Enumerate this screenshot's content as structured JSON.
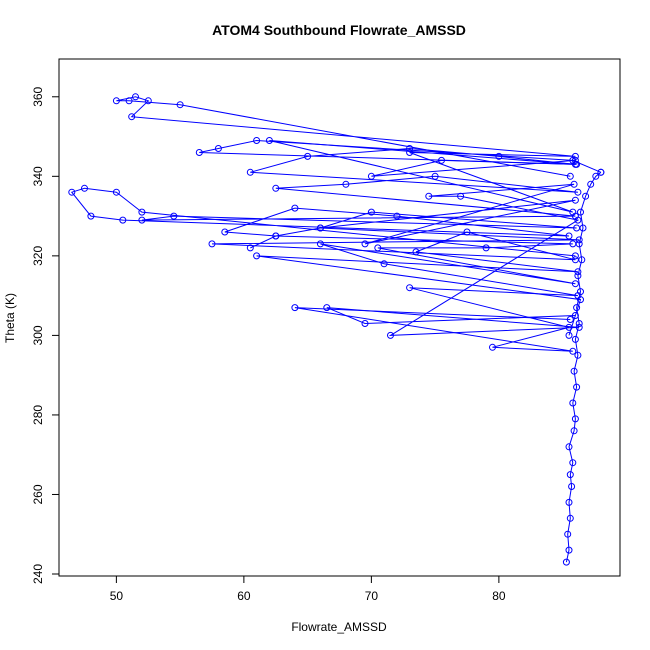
{
  "chart_data": {
    "type": "line",
    "title": "ATOM4 Southbound Flowrate_AMSSD",
    "xlabel": "Flowrate_AMSSD",
    "ylabel": "Theta (K)",
    "xlim": [
      45.5,
      89.5
    ],
    "ylim": [
      239.5,
      369.5
    ],
    "x_ticks": [
      50,
      60,
      70,
      80
    ],
    "y_ticks": [
      240,
      260,
      280,
      300,
      320,
      340,
      360
    ],
    "x_tick_labels": [
      "50",
      "60",
      "70",
      "80"
    ],
    "y_tick_labels": [
      "240",
      "260",
      "280",
      "300",
      "320",
      "340",
      "360"
    ],
    "grid": false,
    "legend": "none",
    "marker": "open-circle",
    "series_color": "#0000ff",
    "series": [
      {
        "x": [
          85.3,
          85.5,
          85.4,
          85.6,
          85.5,
          85.7,
          85.6,
          85.8,
          85.5,
          85.9,
          86.0,
          85.8,
          86.1,
          85.9,
          86.2,
          86.0,
          86.3,
          86.1,
          86.4,
          86.2,
          86.5,
          86.3,
          86.6,
          86.4,
          86.8,
          87.2,
          87.6,
          88.0
        ],
        "y": [
          243,
          246,
          250,
          254,
          258,
          262,
          265,
          268,
          272,
          276,
          279,
          283,
          287,
          291,
          295,
          299,
          303,
          307,
          311,
          315,
          319,
          323,
          327,
          331,
          335,
          338,
          340,
          341
        ]
      },
      {
        "x": [
          88.0,
          85.8,
          61.0,
          58.0,
          56.5,
          86.0,
          80.0,
          73.0,
          65.0,
          60.5,
          86.2,
          75.0,
          68.0,
          62.5,
          86.0,
          52.0,
          54.5,
          86.1,
          70.0,
          66.0,
          86.3,
          57.5,
          86.0,
          77.5,
          73.5,
          86.2,
          61.0,
          86.4,
          85.5
        ],
        "y": [
          341,
          344,
          349,
          347,
          346,
          343,
          345,
          347,
          345,
          341,
          336,
          340,
          338,
          337,
          330,
          329,
          330,
          327,
          331,
          327,
          324,
          323,
          319,
          326,
          321,
          316,
          320,
          309,
          300
        ]
      },
      {
        "x": [
          86.0,
          52.0,
          50.0,
          47.5,
          46.5,
          48.0,
          50.5,
          85.5,
          72.0,
          64.0,
          58.5,
          62.5,
          85.8,
          79.0,
          70.5,
          86.0,
          66.0,
          71.0,
          86.2,
          73.0,
          85.5,
          79.5,
          85.8,
          64.0,
          85.6
        ],
        "y": [
          320,
          331,
          336,
          337,
          336,
          330,
          329,
          325,
          330,
          332,
          326,
          325,
          323,
          322,
          322,
          313,
          323,
          318,
          310,
          312,
          302,
          297,
          296,
          307,
          304
        ]
      },
      {
        "x": [
          85.6,
          55.0,
          51.0,
          50.0,
          51.5,
          52.5,
          51.2,
          86.0,
          73.0,
          85.8,
          62.0,
          86.1,
          75.5,
          70.0,
          86.0
        ],
        "y": [
          340,
          358,
          359,
          359,
          360,
          359,
          355,
          345,
          346,
          331,
          349,
          343,
          344,
          340,
          344
        ]
      },
      {
        "x": [
          60.5,
          62.5,
          66.0,
          86.0,
          69.5,
          85.9,
          74.5,
          77.0,
          86.2,
          71.5,
          86.3,
          66.5,
          69.5,
          86.0
        ],
        "y": [
          322,
          325,
          327,
          334,
          323,
          338,
          335,
          335,
          329,
          300,
          302,
          307,
          303,
          305
        ]
      }
    ]
  }
}
